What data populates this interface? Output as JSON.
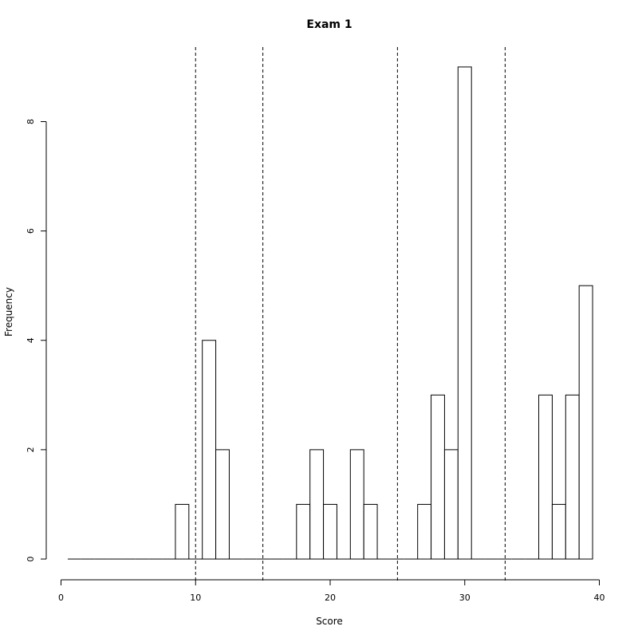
{
  "chart_data": {
    "type": "bar",
    "title": "Exam 1",
    "xlabel": "Score",
    "ylabel": "Frequency",
    "xlim": [
      0,
      40
    ],
    "ylim": [
      0,
      9
    ],
    "x_ticks": [
      "0",
      "10",
      "20",
      "30",
      "40"
    ],
    "y_ticks": [
      "0",
      "2",
      "4",
      "6",
      "8"
    ],
    "bin_width": 1,
    "bins": [
      {
        "start": 0.5,
        "count": 0
      },
      {
        "start": 1.5,
        "count": 0
      },
      {
        "start": 2.5,
        "count": 0
      },
      {
        "start": 3.5,
        "count": 0
      },
      {
        "start": 4.5,
        "count": 0
      },
      {
        "start": 5.5,
        "count": 0
      },
      {
        "start": 6.5,
        "count": 0
      },
      {
        "start": 7.5,
        "count": 0
      },
      {
        "start": 8.5,
        "count": 1
      },
      {
        "start": 9.5,
        "count": 0
      },
      {
        "start": 10.5,
        "count": 4
      },
      {
        "start": 11.5,
        "count": 2
      },
      {
        "start": 12.5,
        "count": 0
      },
      {
        "start": 13.5,
        "count": 0
      },
      {
        "start": 14.5,
        "count": 0
      },
      {
        "start": 15.5,
        "count": 0
      },
      {
        "start": 16.5,
        "count": 0
      },
      {
        "start": 17.5,
        "count": 1
      },
      {
        "start": 18.5,
        "count": 2
      },
      {
        "start": 19.5,
        "count": 1
      },
      {
        "start": 20.5,
        "count": 0
      },
      {
        "start": 21.5,
        "count": 2
      },
      {
        "start": 22.5,
        "count": 1
      },
      {
        "start": 23.5,
        "count": 0
      },
      {
        "start": 24.5,
        "count": 0
      },
      {
        "start": 25.5,
        "count": 0
      },
      {
        "start": 26.5,
        "count": 1
      },
      {
        "start": 27.5,
        "count": 3
      },
      {
        "start": 28.5,
        "count": 2
      },
      {
        "start": 29.5,
        "count": 9
      },
      {
        "start": 30.5,
        "count": 0
      },
      {
        "start": 31.5,
        "count": 0
      },
      {
        "start": 32.5,
        "count": 0
      },
      {
        "start": 33.5,
        "count": 0
      },
      {
        "start": 34.5,
        "count": 0
      },
      {
        "start": 35.5,
        "count": 3
      },
      {
        "start": 36.5,
        "count": 1
      },
      {
        "start": 37.5,
        "count": 3
      },
      {
        "start": 38.5,
        "count": 5
      }
    ],
    "reference_lines_x": [
      10,
      15,
      25,
      33
    ],
    "reference_line_style": "dashed",
    "grid": false,
    "legend": "none",
    "colors": {
      "bar_fill": "#ffffff",
      "bar_stroke": "#000000"
    }
  }
}
